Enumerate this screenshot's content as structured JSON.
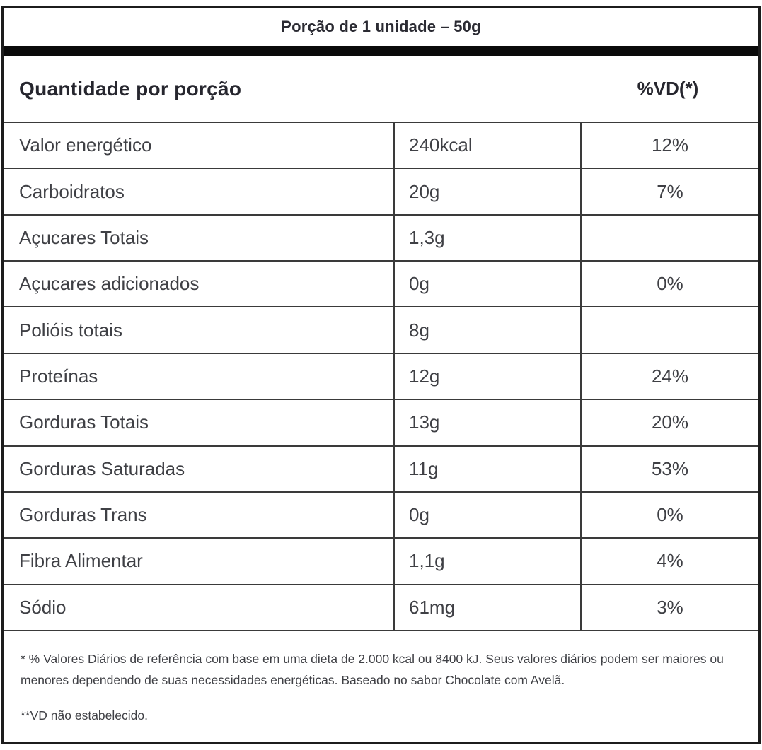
{
  "label": {
    "serving": "Porção de 1 unidade – 50g",
    "header": {
      "quantity": "Quantidade por porção",
      "dv": "%VD(*)"
    },
    "rows": [
      {
        "label": "Valor energético",
        "value": "240kcal",
        "vd": "12%"
      },
      {
        "label": "Carboidratos",
        "value": "20g",
        "vd": "7%"
      },
      {
        "label": "Açucares Totais",
        "value": "1,3g",
        "vd": ""
      },
      {
        "label": "Açucares adicionados",
        "value": "0g",
        "vd": "0%"
      },
      {
        "label": "Polióis totais",
        "value": "8g",
        "vd": ""
      },
      {
        "label": "Proteínas",
        "value": "12g",
        "vd": "24%"
      },
      {
        "label": "Gorduras Totais",
        "value": "13g",
        "vd": "20%"
      },
      {
        "label": "Gorduras Saturadas",
        "value": "11g",
        "vd": "53%"
      },
      {
        "label": "Gorduras Trans",
        "value": "0g",
        "vd": "0%"
      },
      {
        "label": "Fibra Alimentar",
        "value": "1,1g",
        "vd": "4%"
      },
      {
        "label": "Sódio",
        "value": "61mg",
        "vd": "3%"
      }
    ],
    "footnotes": {
      "daily_values": "* % Valores Diários de referência com base em uma dieta de 2.000 kcal ou 8400 kJ. Seus valores diários podem ser maiores ou menores dependendo de suas necessidades energéticas. Baseado no sabor Chocolate com Avelã.",
      "vd_not_established": "**VD não estabelecido."
    },
    "colors": {
      "border": "#1c1c1c",
      "grid_line": "#3a3a3a",
      "text": "#3f4045",
      "heading_text": "#26262e",
      "bar": "#0a0a0a",
      "background": "#ffffff"
    }
  }
}
